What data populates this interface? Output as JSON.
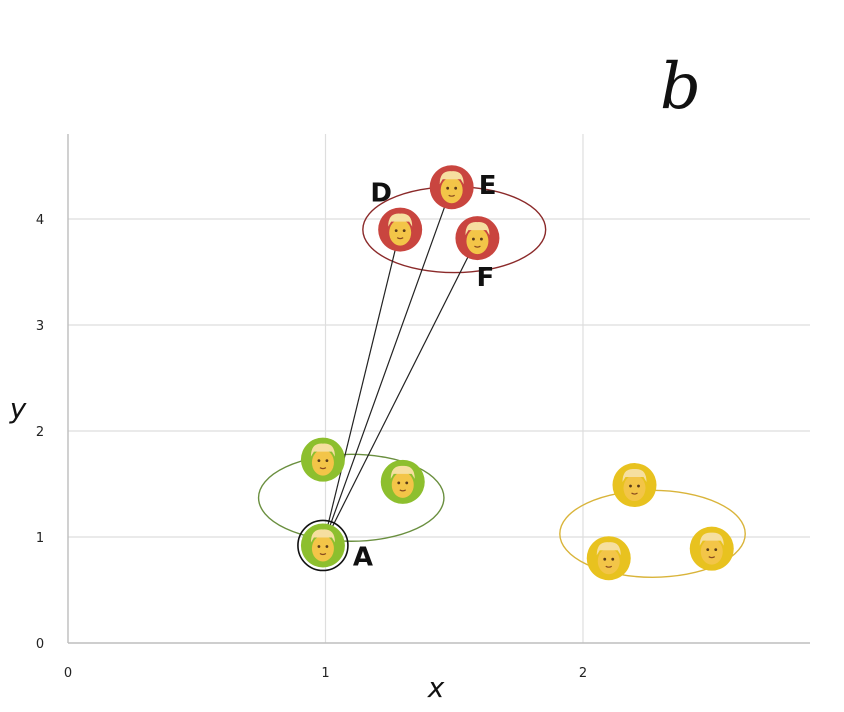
{
  "panel_label": "b",
  "colors": {
    "green": "#6a8f3f",
    "green_fill": "#8dbf2e",
    "red": "#8b2a2a",
    "red_fill": "#c9453f",
    "yellow": "#d9b43a",
    "yellow_fill": "#e8c21f",
    "skin": "#f3c548",
    "hair": "#f6dfa0"
  },
  "chart_data": {
    "type": "scatter",
    "title": "",
    "xlabel": "x",
    "ylabel": "y",
    "xlim": [
      0,
      2.9
    ],
    "ylim": [
      0,
      4.8
    ],
    "xticks": [
      "0",
      "1",
      "2"
    ],
    "yticks": [
      "0",
      "1",
      "2",
      "3",
      "4"
    ],
    "grid": true,
    "series": [
      {
        "color": "green",
        "points": [
          {
            "x": 0.99,
            "y": 1.73,
            "label": ""
          },
          {
            "x": 1.3,
            "y": 1.52,
            "label": ""
          },
          {
            "x": 0.99,
            "y": 0.92,
            "label": "A"
          }
        ],
        "cluster": {
          "cx": 1.1,
          "cy": 1.37,
          "rx": 0.72,
          "ry": 0.82
        }
      },
      {
        "color": "red",
        "points": [
          {
            "x": 1.29,
            "y": 3.9,
            "label": "D"
          },
          {
            "x": 1.49,
            "y": 4.3,
            "label": "E"
          },
          {
            "x": 1.59,
            "y": 3.82,
            "label": "F"
          }
        ],
        "cluster": {
          "cx": 1.5,
          "cy": 3.9,
          "rx": 0.71,
          "ry": 0.81
        }
      },
      {
        "color": "yellow",
        "points": [
          {
            "x": 2.2,
            "y": 1.49,
            "label": ""
          },
          {
            "x": 2.1,
            "y": 0.8,
            "label": ""
          },
          {
            "x": 2.5,
            "y": 0.89,
            "label": ""
          }
        ],
        "cluster": {
          "cx": 2.27,
          "cy": 1.03,
          "rx": 0.72,
          "ry": 0.82
        }
      }
    ],
    "links": [
      {
        "from": "A",
        "to": "D"
      },
      {
        "from": "A",
        "to": "E"
      },
      {
        "from": "A",
        "to": "F"
      }
    ],
    "highlight": "A"
  }
}
